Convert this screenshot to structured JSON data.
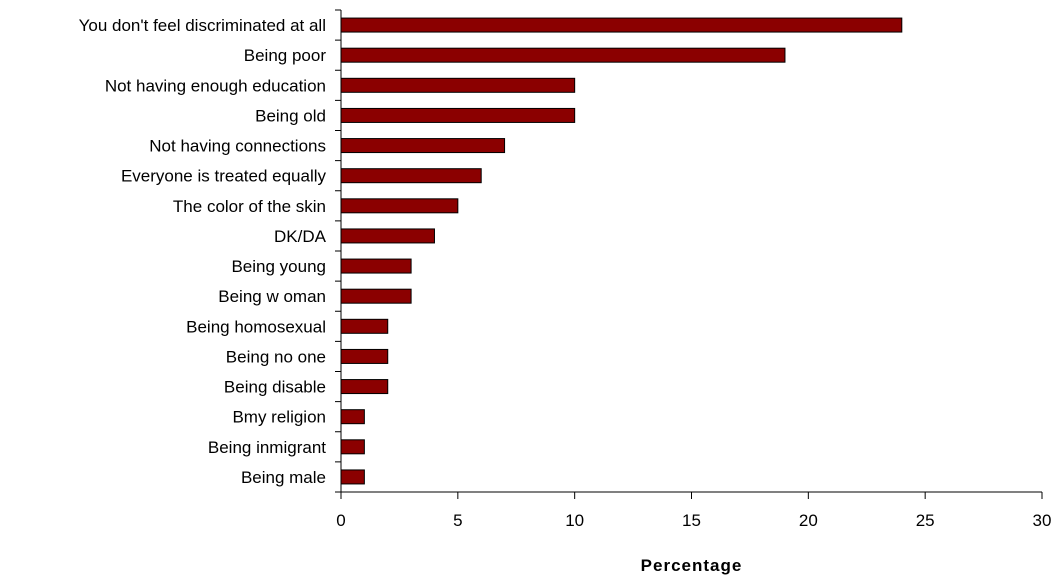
{
  "chart_data": {
    "type": "bar",
    "orientation": "horizontal",
    "categories": [
      "You don't feel discriminated at all",
      "Being poor",
      "Not having enough education",
      "Being old",
      "Not having connections",
      "Everyone is treated equally",
      "The color of the skin",
      "DK/DA",
      "Being young",
      "Being w oman",
      "Being homosexual",
      "Being no one",
      "Being disable",
      "Bmy religion",
      "Being inmigrant",
      "Being male"
    ],
    "values": [
      24,
      19,
      10,
      10,
      7,
      6,
      5,
      4,
      3,
      3,
      2,
      2,
      2,
      1,
      1,
      1
    ],
    "xlabel": "Percentage",
    "ylabel": "",
    "xlim": [
      0,
      30
    ],
    "xticks": [
      "0",
      "5",
      "10",
      "15",
      "20",
      "25",
      "30"
    ],
    "grid": false,
    "legend": "none",
    "bar_color": "#8b0000"
  }
}
